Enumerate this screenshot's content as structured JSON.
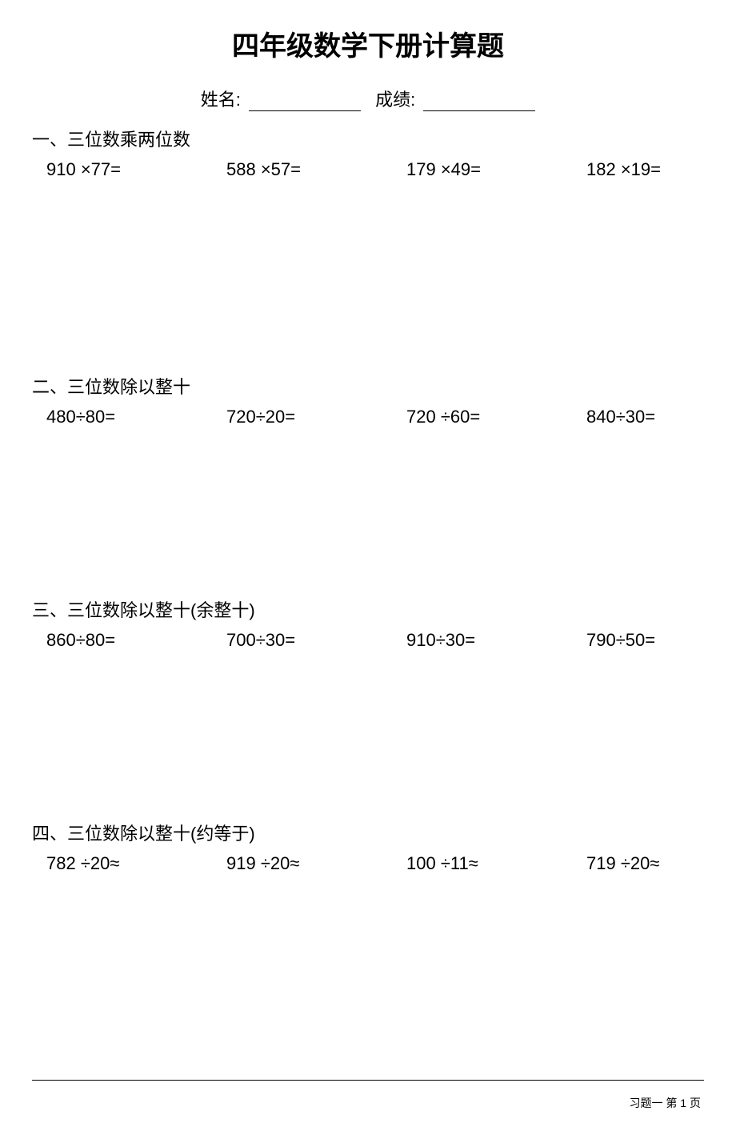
{
  "title": "四年级数学下册计算题",
  "header": {
    "name_label": "姓名:",
    "score_label": "成绩:"
  },
  "sections": [
    {
      "title": "一、三位数乘两位数",
      "problems": [
        "910 ×77=",
        "588 ×57=",
        "179 ×49=",
        "182 ×19="
      ],
      "gap_class": "gap-large"
    },
    {
      "title": "二、三位数除以整十",
      "problems": [
        "480÷80=",
        "720÷20=",
        "720 ÷60=",
        "840÷30="
      ],
      "gap_class": "gap-mid"
    },
    {
      "title": "三、三位数除以整十(余整十)",
      "problems": [
        "860÷80=",
        "700÷30=",
        "910÷30=",
        "790÷50="
      ],
      "gap_class": "gap-mid"
    },
    {
      "title": "四、三位数除以整十(约等于)",
      "problems": [
        "782 ÷20≈",
        "919 ÷20≈",
        "100 ÷11≈",
        "719 ÷20≈"
      ],
      "gap_class": ""
    }
  ],
  "footer": "习题一 第 1 页",
  "style": {
    "background_color": "#ffffff",
    "text_color": "#000000",
    "title_fontsize": 34,
    "section_title_fontsize": 22,
    "problem_fontsize": 22,
    "footer_fontsize": 14,
    "underline_width": 140
  }
}
